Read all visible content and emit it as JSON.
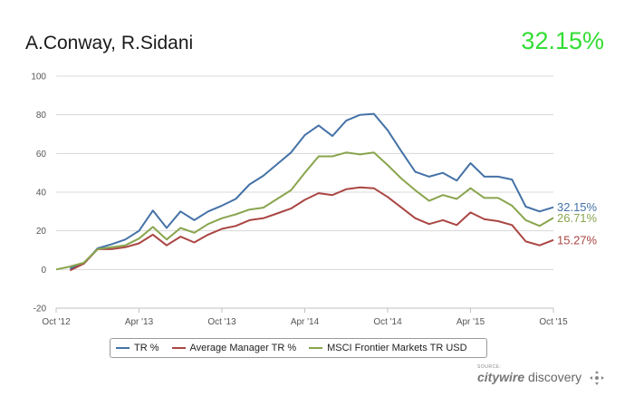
{
  "header": {
    "title": "A.Conway, R.Sidani",
    "headline_value": "32.15%",
    "headline_color": "#33dd33"
  },
  "chart_data": {
    "type": "line",
    "y_ticks": [
      -20,
      0,
      20,
      40,
      60,
      80,
      100
    ],
    "ylim": [
      -20,
      100
    ],
    "x_ticks": [
      "Oct '12",
      "Apr '13",
      "Oct '13",
      "Apr '14",
      "Oct '14",
      "Apr '15",
      "Oct '15"
    ],
    "x_tick_positions": [
      0,
      6,
      12,
      18,
      24,
      30,
      36
    ],
    "xlim": [
      0,
      36
    ],
    "grid": "horizontal",
    "legend_position": "bottom",
    "series": [
      {
        "name": "TR %",
        "color": "#4572a7",
        "end_label": "32.15%",
        "points": [
          [
            1,
            0.5
          ],
          [
            2,
            3
          ],
          [
            3,
            11
          ],
          [
            4,
            13
          ],
          [
            5,
            15.5
          ],
          [
            6,
            20
          ],
          [
            7,
            30.5
          ],
          [
            8,
            21.5
          ],
          [
            9,
            30
          ],
          [
            10,
            25.5
          ],
          [
            11,
            30
          ],
          [
            12,
            33
          ],
          [
            13,
            36.5
          ],
          [
            14,
            44
          ],
          [
            15,
            48.5
          ],
          [
            16,
            54.5
          ],
          [
            17,
            60.5
          ],
          [
            18,
            69.5
          ],
          [
            19,
            74.5
          ],
          [
            20,
            69
          ],
          [
            21,
            77
          ],
          [
            22,
            80
          ],
          [
            23,
            80.5
          ],
          [
            24,
            72
          ],
          [
            25,
            61
          ],
          [
            26,
            50.5
          ],
          [
            27,
            48
          ],
          [
            28,
            50
          ],
          [
            29,
            46
          ],
          [
            30,
            55
          ],
          [
            31,
            48
          ],
          [
            32,
            48
          ],
          [
            33,
            46.5
          ],
          [
            34,
            32.5
          ],
          [
            35,
            30
          ],
          [
            36,
            32.15
          ]
        ]
      },
      {
        "name": "Average Manager TR %",
        "color": "#aa4643",
        "end_label": "15.27%",
        "points": [
          [
            1,
            -0.5
          ],
          [
            2,
            3
          ],
          [
            3,
            10.5
          ],
          [
            4,
            10.5
          ],
          [
            5,
            11.5
          ],
          [
            6,
            13.5
          ],
          [
            7,
            18
          ],
          [
            8,
            12.5
          ],
          [
            9,
            17
          ],
          [
            10,
            14
          ],
          [
            11,
            18
          ],
          [
            12,
            21
          ],
          [
            13,
            22.5
          ],
          [
            14,
            25.5
          ],
          [
            15,
            26.5
          ],
          [
            16,
            29
          ],
          [
            17,
            31.5
          ],
          [
            18,
            36
          ],
          [
            19,
            39.5
          ],
          [
            20,
            38.5
          ],
          [
            21,
            41.5
          ],
          [
            22,
            42.5
          ],
          [
            23,
            42
          ],
          [
            24,
            37.5
          ],
          [
            25,
            32
          ],
          [
            26,
            26.5
          ],
          [
            27,
            23.5
          ],
          [
            28,
            25.5
          ],
          [
            29,
            23
          ],
          [
            30,
            29.5
          ],
          [
            31,
            26
          ],
          [
            32,
            25
          ],
          [
            33,
            23
          ],
          [
            34,
            14.5
          ],
          [
            35,
            12.5
          ],
          [
            36,
            15.27
          ]
        ]
      },
      {
        "name": "MSCI Frontier Markets TR USD",
        "color": "#89a54e",
        "end_label": "26.71%",
        "points": [
          [
            0,
            0
          ],
          [
            1,
            1.5
          ],
          [
            2,
            3.5
          ],
          [
            3,
            10.5
          ],
          [
            4,
            11.5
          ],
          [
            5,
            12.5
          ],
          [
            6,
            16
          ],
          [
            7,
            22
          ],
          [
            8,
            15.5
          ],
          [
            9,
            21.5
          ],
          [
            10,
            19
          ],
          [
            11,
            23.5
          ],
          [
            12,
            26.5
          ],
          [
            13,
            28.5
          ],
          [
            14,
            31
          ],
          [
            15,
            32
          ],
          [
            16,
            36.5
          ],
          [
            17,
            41
          ],
          [
            18,
            50
          ],
          [
            19,
            58.5
          ],
          [
            20,
            58.5
          ],
          [
            21,
            60.5
          ],
          [
            22,
            59.5
          ],
          [
            23,
            60.5
          ],
          [
            24,
            54
          ],
          [
            25,
            47
          ],
          [
            26,
            41
          ],
          [
            27,
            35.5
          ],
          [
            28,
            38.5
          ],
          [
            29,
            36.5
          ],
          [
            30,
            42
          ],
          [
            31,
            37
          ],
          [
            32,
            37
          ],
          [
            33,
            33
          ],
          [
            34,
            25.5
          ],
          [
            35,
            22.5
          ],
          [
            36,
            26.71
          ]
        ]
      }
    ]
  },
  "legend": {
    "items": [
      "TR %",
      "Average Manager TR %",
      "MSCI Frontier Markets TR USD"
    ]
  },
  "source": {
    "small_text": "SOURCE:",
    "brand_bold": "citywire",
    "brand_text": " discovery"
  }
}
